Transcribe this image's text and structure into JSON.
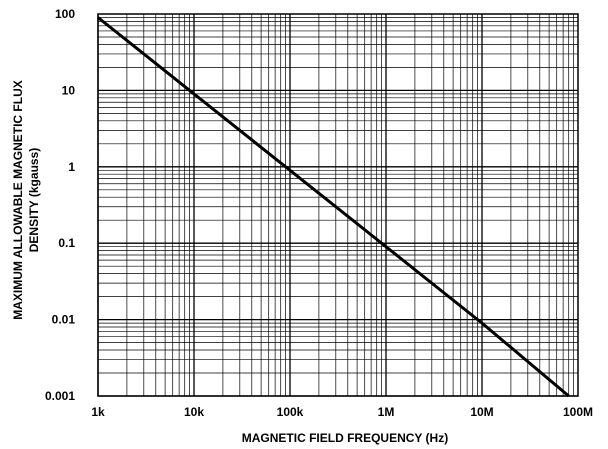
{
  "chart_data": {
    "type": "line",
    "title": "",
    "xlabel": "MAGNETIC FIELD FREQUENCY (Hz)",
    "ylabel_lines": [
      "MAXIMUM ALLOWABLE MAGNETIC FLUX",
      "DENSITY (kgauss)"
    ],
    "x_scale": "log",
    "y_scale": "log",
    "xlim": [
      1000,
      100000000
    ],
    "ylim": [
      0.001,
      100
    ],
    "x_ticks": [
      {
        "value": 1000,
        "label": "1k"
      },
      {
        "value": 10000,
        "label": "10k"
      },
      {
        "value": 100000,
        "label": "100k"
      },
      {
        "value": 1000000,
        "label": "1M"
      },
      {
        "value": 10000000,
        "label": "10M"
      },
      {
        "value": 100000000,
        "label": "100M"
      }
    ],
    "y_ticks": [
      {
        "value": 100,
        "label": "100"
      },
      {
        "value": 10,
        "label": "10"
      },
      {
        "value": 1,
        "label": "1"
      },
      {
        "value": 0.1,
        "label": "0.1"
      },
      {
        "value": 0.01,
        "label": "0.01"
      },
      {
        "value": 0.001,
        "label": "0.001"
      }
    ],
    "grid": true,
    "legend": "none",
    "series": [
      {
        "x": [
          1000,
          10000,
          100000,
          1000000,
          10000000,
          80000000
        ],
        "y": [
          90,
          9,
          0.9,
          0.09,
          0.009,
          0.001
        ]
      }
    ],
    "colors": {
      "line": "#000000",
      "grid": "#000000",
      "background": "#ffffff"
    }
  }
}
